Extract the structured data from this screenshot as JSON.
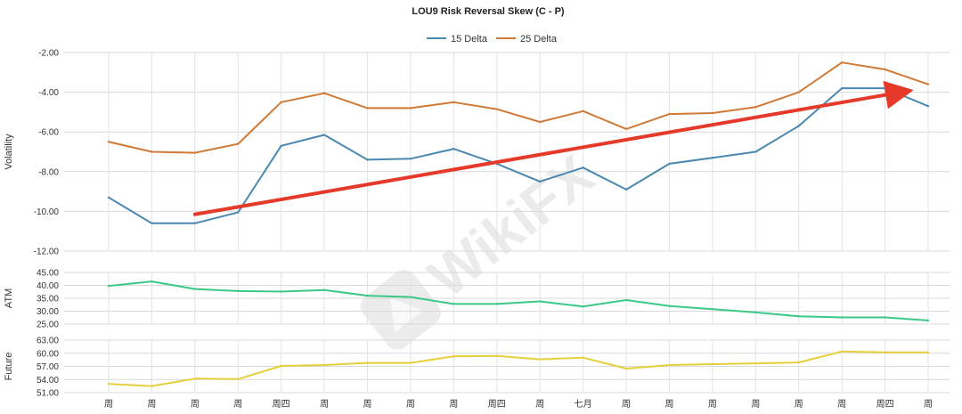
{
  "chart_data": [
    {
      "type": "line",
      "title": "LOU9 Risk Reversal Skew (C - P)",
      "ylabel": "Volatility",
      "ylim": [
        -12.0,
        -2.0
      ],
      "yticks": [
        "-2.00",
        "-4.00",
        "-6.00",
        "-8.00",
        "-10.00",
        "-12.00"
      ],
      "legend_position": "top-center",
      "x": [
        "周",
        "周",
        "周",
        "周",
        "周四",
        "周",
        "周",
        "周",
        "周",
        "周四",
        "周",
        "七月",
        "周",
        "周",
        "周",
        "周",
        "周",
        "周",
        "周四",
        "周"
      ],
      "series": [
        {
          "name": "15 Delta",
          "color": "#4a88b0",
          "values": [
            -9.3,
            -10.6,
            -10.6,
            -10.05,
            -6.7,
            -6.15,
            -7.4,
            -7.35,
            -6.85,
            -7.6,
            -8.5,
            -7.8,
            -8.9,
            -7.6,
            -7.3,
            -7.0,
            -5.7,
            -3.8,
            -3.8,
            -4.7
          ]
        },
        {
          "name": "25 Delta",
          "color": "#d07a38",
          "values": [
            -6.5,
            -7.0,
            -7.05,
            -6.6,
            -4.5,
            -4.05,
            -4.8,
            -4.8,
            -4.5,
            -4.85,
            -5.5,
            -4.95,
            -5.85,
            -5.1,
            -5.05,
            -4.75,
            -4.0,
            -2.5,
            -2.85,
            -3.6
          ]
        }
      ],
      "annotation": {
        "type": "trend-arrow",
        "color": "#e53a2a",
        "from": {
          "x_index": 2,
          "y": -10.15
        },
        "to": {
          "x_index": 18.5,
          "y": -3.95
        }
      }
    },
    {
      "type": "line",
      "ylabel": "ATM",
      "ylim": [
        25.0,
        45.0
      ],
      "yticks": [
        "45.00",
        "40.00",
        "35.00",
        "30.00",
        "25.00"
      ],
      "series": [
        {
          "color": "#3cc987",
          "values": [
            39.8,
            41.5,
            38.6,
            37.8,
            37.6,
            38.2,
            36.0,
            35.5,
            32.8,
            32.8,
            33.8,
            31.8,
            34.3,
            32.0,
            30.8,
            29.5,
            28.0,
            27.6,
            27.6,
            26.4
          ]
        }
      ]
    },
    {
      "type": "line",
      "ylabel": "Future",
      "ylim": [
        51.0,
        63.0
      ],
      "yticks": [
        "63.00",
        "60.00",
        "57.00",
        "54.00",
        "51.00"
      ],
      "series": [
        {
          "color": "#e6cf3c",
          "values": [
            53.0,
            52.5,
            54.2,
            54.1,
            57.1,
            57.3,
            57.8,
            57.8,
            59.3,
            59.4,
            58.6,
            59.0,
            56.5,
            57.3,
            57.5,
            57.7,
            57.9,
            60.4,
            60.2,
            60.2
          ]
        }
      ]
    }
  ],
  "watermark": {
    "text": "WikiFX",
    "icon": "wikifx-logo-icon"
  }
}
